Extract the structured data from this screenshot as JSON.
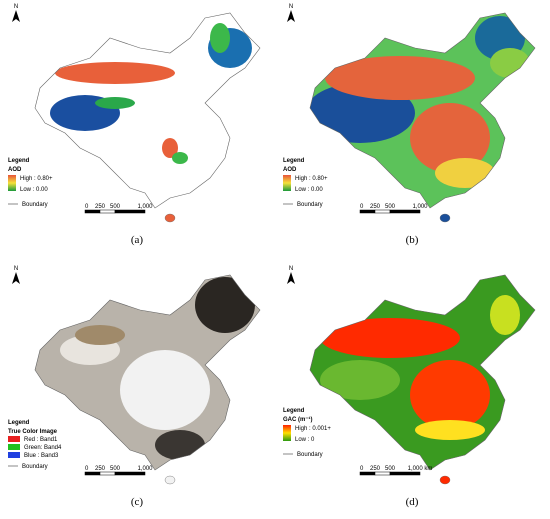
{
  "panels": [
    {
      "caption": "(a)",
      "north": "N",
      "legend": {
        "title": "Legend",
        "layer": "AOD",
        "items": [
          "High : 0.80+",
          "Low : 0.00"
        ],
        "boundary": "Boundary"
      },
      "scale": [
        "0",
        "250",
        "500",
        "1,000"
      ]
    },
    {
      "caption": "(b)",
      "north": "N",
      "legend": {
        "title": "Legend",
        "layer": "AOD",
        "items": [
          "High : 0.80+",
          "Low : 0.00"
        ],
        "boundary": "Boundary"
      },
      "scale": [
        "0",
        "250",
        "500",
        "1,000"
      ]
    },
    {
      "caption": "(c)",
      "north": "N",
      "legend": {
        "title": "Legend",
        "layer": "True Color Image",
        "items": [
          "Red : Band1",
          "Green: Band4",
          "Blue : Band3"
        ],
        "boundary": "Boundary"
      },
      "scale": [
        "0",
        "250",
        "500",
        "1,000"
      ]
    },
    {
      "caption": "(d)",
      "north": "N",
      "legend": {
        "title": "Legend",
        "layer": "GAC (m⁻¹)",
        "items": [
          "High : 0.001+",
          "Low : 0"
        ],
        "boundary": "Boundary"
      },
      "scale": [
        "0",
        "250",
        "500",
        "1,000 km"
      ]
    }
  ]
}
